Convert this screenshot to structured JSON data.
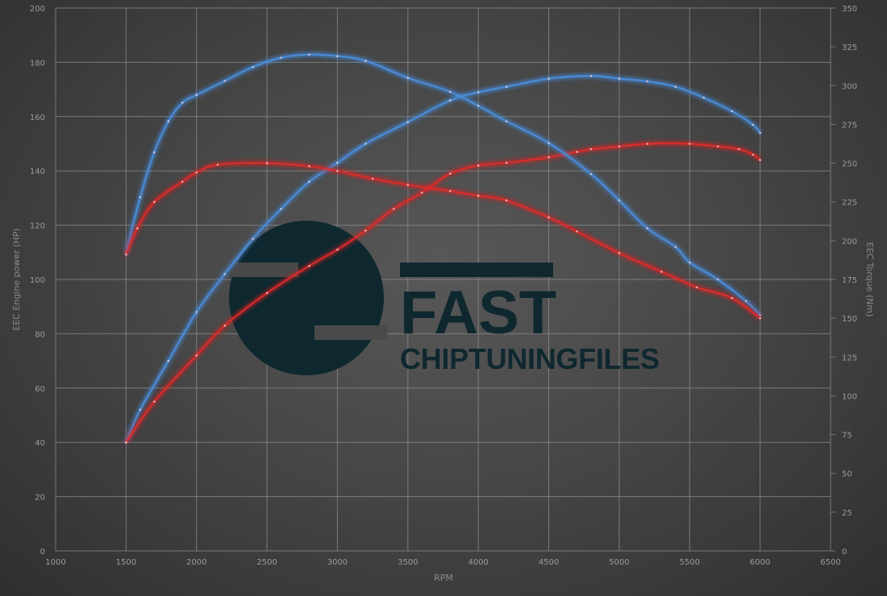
{
  "chart_data": {
    "type": "line",
    "title": "",
    "xlabel": "RPM",
    "ylabel": "EEC Engine power (HP)",
    "y2label": "EEC Torque (Nm)",
    "xlim": [
      1000,
      6500
    ],
    "ylim": [
      0,
      200
    ],
    "y2lim": [
      0,
      350
    ],
    "x_ticks": [
      1000,
      1500,
      2000,
      2500,
      3000,
      3500,
      4000,
      4500,
      5000,
      5500,
      6000,
      6500
    ],
    "y_ticks": [
      0,
      20,
      40,
      60,
      80,
      100,
      120,
      140,
      160,
      180,
      200
    ],
    "y2_ticks": [
      0,
      25,
      50,
      75,
      100,
      125,
      150,
      175,
      200,
      225,
      250,
      275,
      300,
      325,
      350
    ],
    "grid": true,
    "colors": {
      "tuned": "#4a8fe0",
      "original": "#e02a2a"
    },
    "series": [
      {
        "axis": "left",
        "color": "#4a8fe0",
        "points": [
          [
            1500,
            40
          ],
          [
            1600,
            52
          ],
          [
            1800,
            70
          ],
          [
            2000,
            88
          ],
          [
            2200,
            102
          ],
          [
            2400,
            115
          ],
          [
            2600,
            126
          ],
          [
            2800,
            136
          ],
          [
            3000,
            143
          ],
          [
            3200,
            150
          ],
          [
            3500,
            158
          ],
          [
            3800,
            166
          ],
          [
            4000,
            169
          ],
          [
            4200,
            171
          ],
          [
            4500,
            174
          ],
          [
            4800,
            175
          ],
          [
            5000,
            174
          ],
          [
            5200,
            173
          ],
          [
            5400,
            171
          ],
          [
            5600,
            167
          ],
          [
            5800,
            162
          ],
          [
            5950,
            157
          ],
          [
            6000,
            154
          ]
        ]
      },
      {
        "axis": "left",
        "color": "#e02a2a",
        "points": [
          [
            1500,
            40
          ],
          [
            1700,
            55
          ],
          [
            2000,
            72
          ],
          [
            2200,
            83
          ],
          [
            2500,
            95
          ],
          [
            2800,
            105
          ],
          [
            3000,
            111
          ],
          [
            3200,
            118
          ],
          [
            3400,
            126
          ],
          [
            3600,
            132
          ],
          [
            3800,
            139
          ],
          [
            4000,
            142
          ],
          [
            4200,
            143
          ],
          [
            4500,
            145
          ],
          [
            4700,
            147
          ],
          [
            4800,
            148
          ],
          [
            5000,
            149
          ],
          [
            5200,
            150
          ],
          [
            5500,
            150
          ],
          [
            5700,
            149
          ],
          [
            5850,
            148
          ],
          [
            5950,
            146
          ],
          [
            6000,
            144
          ]
        ]
      },
      {
        "axis": "right",
        "color": "#4a8fe0",
        "points": [
          [
            1500,
            192
          ],
          [
            1600,
            228
          ],
          [
            1700,
            257
          ],
          [
            1800,
            277
          ],
          [
            1900,
            289
          ],
          [
            2000,
            294
          ],
          [
            2200,
            303
          ],
          [
            2400,
            312
          ],
          [
            2600,
            318
          ],
          [
            2800,
            320
          ],
          [
            3000,
            319
          ],
          [
            3200,
            316
          ],
          [
            3500,
            305
          ],
          [
            3800,
            296
          ],
          [
            4000,
            287
          ],
          [
            4200,
            277
          ],
          [
            4500,
            263
          ],
          [
            4800,
            243
          ],
          [
            5000,
            226
          ],
          [
            5200,
            208
          ],
          [
            5400,
            196
          ],
          [
            5500,
            186
          ],
          [
            5700,
            175
          ],
          [
            5900,
            161
          ],
          [
            6000,
            152
          ]
        ]
      },
      {
        "axis": "right",
        "color": "#e02a2a",
        "points": [
          [
            1500,
            191
          ],
          [
            1580,
            208
          ],
          [
            1700,
            225
          ],
          [
            1900,
            238
          ],
          [
            2000,
            244
          ],
          [
            2150,
            249
          ],
          [
            2500,
            250
          ],
          [
            2800,
            248
          ],
          [
            3000,
            245
          ],
          [
            3250,
            240
          ],
          [
            3500,
            236
          ],
          [
            3800,
            232
          ],
          [
            4000,
            229
          ],
          [
            4200,
            226
          ],
          [
            4500,
            215
          ],
          [
            4700,
            206
          ],
          [
            5000,
            192
          ],
          [
            5300,
            180
          ],
          [
            5550,
            170
          ],
          [
            5800,
            163
          ],
          [
            6000,
            150
          ]
        ]
      }
    ]
  },
  "watermark": {
    "line1": "FAST",
    "line2": "CHIPTUNINGFILES",
    "color": "#0f2830"
  }
}
